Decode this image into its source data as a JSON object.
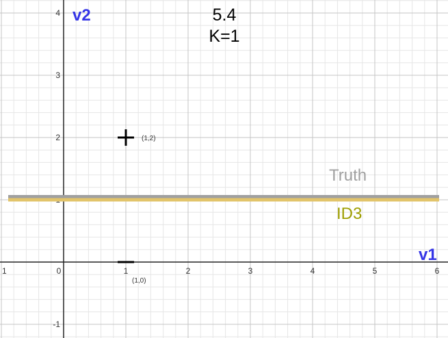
{
  "chart_data": {
    "type": "scatter",
    "title": "5.4",
    "subtitle": "K=1",
    "xlabel": "v1",
    "ylabel": "v2",
    "xlim": [
      -1,
      6.2
    ],
    "ylim": [
      -1.2,
      4.2
    ],
    "grid": true,
    "x_ticks": [
      "1",
      "0",
      "1",
      "2",
      "3",
      "4",
      "5",
      "6"
    ],
    "y_ticks": [
      "4",
      "3",
      "2",
      "1",
      "-1"
    ],
    "points": [
      {
        "x": 1,
        "y": 2,
        "marker": "+",
        "label": "(1,2)"
      },
      {
        "x": 1,
        "y": 0,
        "marker": "−",
        "label": "(1,0)"
      }
    ],
    "lines": [
      {
        "name": "Truth",
        "y": 1.05,
        "color": "#a0a0a0"
      },
      {
        "name": "ID3",
        "y": 1.0,
        "color": "#e2c46b",
        "label_color": "#9e9e00"
      }
    ]
  }
}
